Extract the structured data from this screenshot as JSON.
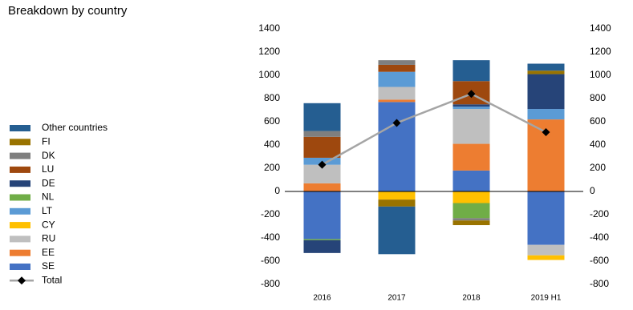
{
  "chart_data": {
    "type": "bar",
    "stacked": true,
    "title": "Breakdown by country",
    "categories": [
      "2016",
      "2017",
      "2018",
      "2019 H1"
    ],
    "series": [
      {
        "name": "SE",
        "color": "#4472c4",
        "values": [
          -410,
          770,
          180,
          -460
        ]
      },
      {
        "name": "EE",
        "color": "#ed7d31",
        "values": [
          70,
          20,
          230,
          620
        ]
      },
      {
        "name": "RU",
        "color": "#bfbfbf",
        "values": [
          160,
          110,
          300,
          -90
        ]
      },
      {
        "name": "CY",
        "color": "#ffc000",
        "values": [
          0,
          -70,
          -100,
          -40
        ]
      },
      {
        "name": "LT",
        "color": "#5b9bd5",
        "values": [
          60,
          130,
          20,
          90
        ]
      },
      {
        "name": "NL",
        "color": "#70ad47",
        "values": [
          -10,
          0,
          -130,
          0
        ]
      },
      {
        "name": "DE",
        "color": "#264478",
        "values": [
          -110,
          0,
          20,
          300
        ]
      },
      {
        "name": "LU",
        "color": "#9e480e",
        "values": [
          180,
          60,
          200,
          0
        ]
      },
      {
        "name": "DK",
        "color": "#7f7f7f",
        "values": [
          50,
          40,
          -20,
          0
        ]
      },
      {
        "name": "FI",
        "color": "#997300",
        "values": [
          0,
          -60,
          -40,
          30
        ]
      },
      {
        "name": "Other countries",
        "color": "#255e91",
        "values": [
          240,
          -410,
          180,
          60
        ]
      },
      {
        "name": "Total",
        "type": "line",
        "color": "#a5a5a5",
        "marker_color": "#000000",
        "axis": "y2",
        "values": [
          230,
          590,
          840,
          510
        ]
      }
    ],
    "ylim": [
      -800,
      1400
    ],
    "yticks": [
      -800,
      -600,
      -400,
      -200,
      0,
      200,
      400,
      600,
      800,
      1000,
      1200,
      1400
    ],
    "y2lim": [
      -800,
      1400
    ],
    "y2ticks": [
      -800,
      -600,
      -400,
      -200,
      0,
      200,
      400,
      600,
      800,
      1000,
      1200,
      1400
    ],
    "grid": false,
    "legend": "left"
  }
}
